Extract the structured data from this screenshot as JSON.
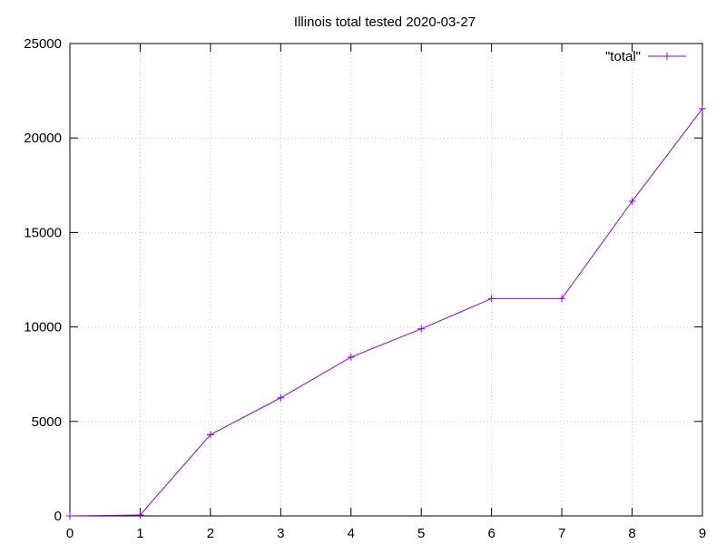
{
  "chart_data": {
    "type": "line",
    "title": "Illinois total tested 2020-03-27",
    "xlabel": "",
    "ylabel": "",
    "xlim": [
      0,
      9
    ],
    "ylim": [
      0,
      25000
    ],
    "x_ticks": [
      0,
      1,
      2,
      3,
      4,
      5,
      6,
      7,
      8,
      9
    ],
    "y_ticks": [
      0,
      5000,
      10000,
      15000,
      20000,
      25000
    ],
    "grid": true,
    "legend_position": "top-right",
    "series": [
      {
        "name": "\"total\"",
        "color": "#9400d3",
        "marker": "plus",
        "x": [
          0,
          1,
          2,
          3,
          4,
          5,
          6,
          7,
          8,
          9
        ],
        "y": [
          0,
          50,
          4300,
          6250,
          8400,
          9900,
          11500,
          11500,
          16650,
          21550
        ]
      }
    ]
  }
}
